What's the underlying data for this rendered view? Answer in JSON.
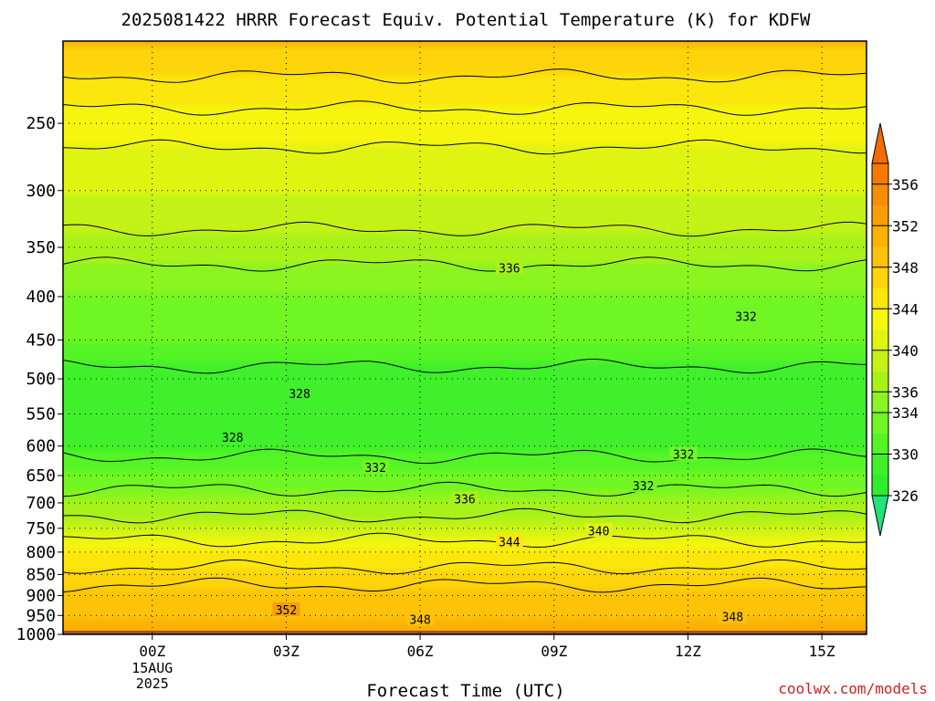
{
  "chart_data": {
    "type": "heatmap",
    "title": "2025081422 HRRR Forecast Equiv. Potential Temperature (K) for KDFW",
    "xlabel": "Forecast Time (UTC)",
    "ylabel": "",
    "x_ticks": [
      {
        "hour": 0,
        "label": "00Z",
        "sub": [
          "15AUG",
          "2025"
        ]
      },
      {
        "hour": 3,
        "label": "03Z",
        "sub": []
      },
      {
        "hour": 6,
        "label": "06Z",
        "sub": []
      },
      {
        "hour": 9,
        "label": "09Z",
        "sub": []
      },
      {
        "hour": 12,
        "label": "12Z",
        "sub": []
      },
      {
        "hour": 15,
        "label": "15Z",
        "sub": []
      }
    ],
    "xlim": [
      -2,
      16
    ],
    "y_scale": "log",
    "y_ticks": [
      250,
      300,
      350,
      400,
      450,
      500,
      550,
      600,
      650,
      700,
      750,
      800,
      850,
      900,
      950,
      1000
    ],
    "ylim": [
      1000,
      200
    ],
    "grid": true,
    "ground_pressure": 990,
    "ground_color": "#a0522d",
    "colorbar": {
      "position": "right",
      "levels": [
        326,
        328,
        330,
        332,
        334,
        336,
        338,
        340,
        342,
        344,
        346,
        348,
        350,
        352,
        354,
        356
      ],
      "labels": [
        326,
        330,
        334,
        336,
        340,
        344,
        348,
        352,
        356
      ],
      "colors": [
        "#2eec2e",
        "#3ff02a",
        "#55f425",
        "#70f622",
        "#8cf41e",
        "#a8f21a",
        "#c4f216",
        "#e0f412",
        "#f5f50e",
        "#fce60c",
        "#fdd40a",
        "#fcc308",
        "#fbb106",
        "#f99f04",
        "#f78d02",
        "#f57b00"
      ],
      "under_color": "#22e27a",
      "over_color": "#f26c00"
    },
    "profile": [
      {
        "p": 200,
        "theta_e": 348
      },
      {
        "p": 250,
        "theta_e": 343
      },
      {
        "p": 300,
        "theta_e": 340
      },
      {
        "p": 350,
        "theta_e": 337
      },
      {
        "p": 400,
        "theta_e": 334
      },
      {
        "p": 450,
        "theta_e": 332
      },
      {
        "p": 500,
        "theta_e": 329
      },
      {
        "p": 550,
        "theta_e": 328
      },
      {
        "p": 600,
        "theta_e": 329
      },
      {
        "p": 650,
        "theta_e": 332
      },
      {
        "p": 700,
        "theta_e": 336
      },
      {
        "p": 750,
        "theta_e": 340
      },
      {
        "p": 800,
        "theta_e": 344
      },
      {
        "p": 850,
        "theta_e": 347
      },
      {
        "p": 900,
        "theta_e": 349
      },
      {
        "p": 950,
        "theta_e": 350
      },
      {
        "p": 1000,
        "theta_e": 350
      }
    ],
    "contour_labels": [
      {
        "value": "336",
        "hour": 8.0,
        "p": 370
      },
      {
        "value": "332",
        "hour": 13.3,
        "p": 422
      },
      {
        "value": "328",
        "hour": 3.3,
        "p": 520
      },
      {
        "value": "328",
        "hour": 1.8,
        "p": 586
      },
      {
        "value": "332",
        "hour": 5.0,
        "p": 636
      },
      {
        "value": "332",
        "hour": 11.9,
        "p": 613
      },
      {
        "value": "332",
        "hour": 11.0,
        "p": 668
      },
      {
        "value": "336",
        "hour": 7.0,
        "p": 692
      },
      {
        "value": "340",
        "hour": 10.0,
        "p": 755
      },
      {
        "value": "344",
        "hour": 8.0,
        "p": 778
      },
      {
        "value": "352",
        "hour": 3.0,
        "p": 935
      },
      {
        "value": "348",
        "hour": 6.0,
        "p": 960
      },
      {
        "value": "348",
        "hour": 13.0,
        "p": 953
      }
    ]
  },
  "credit": "coolwx.com/models"
}
